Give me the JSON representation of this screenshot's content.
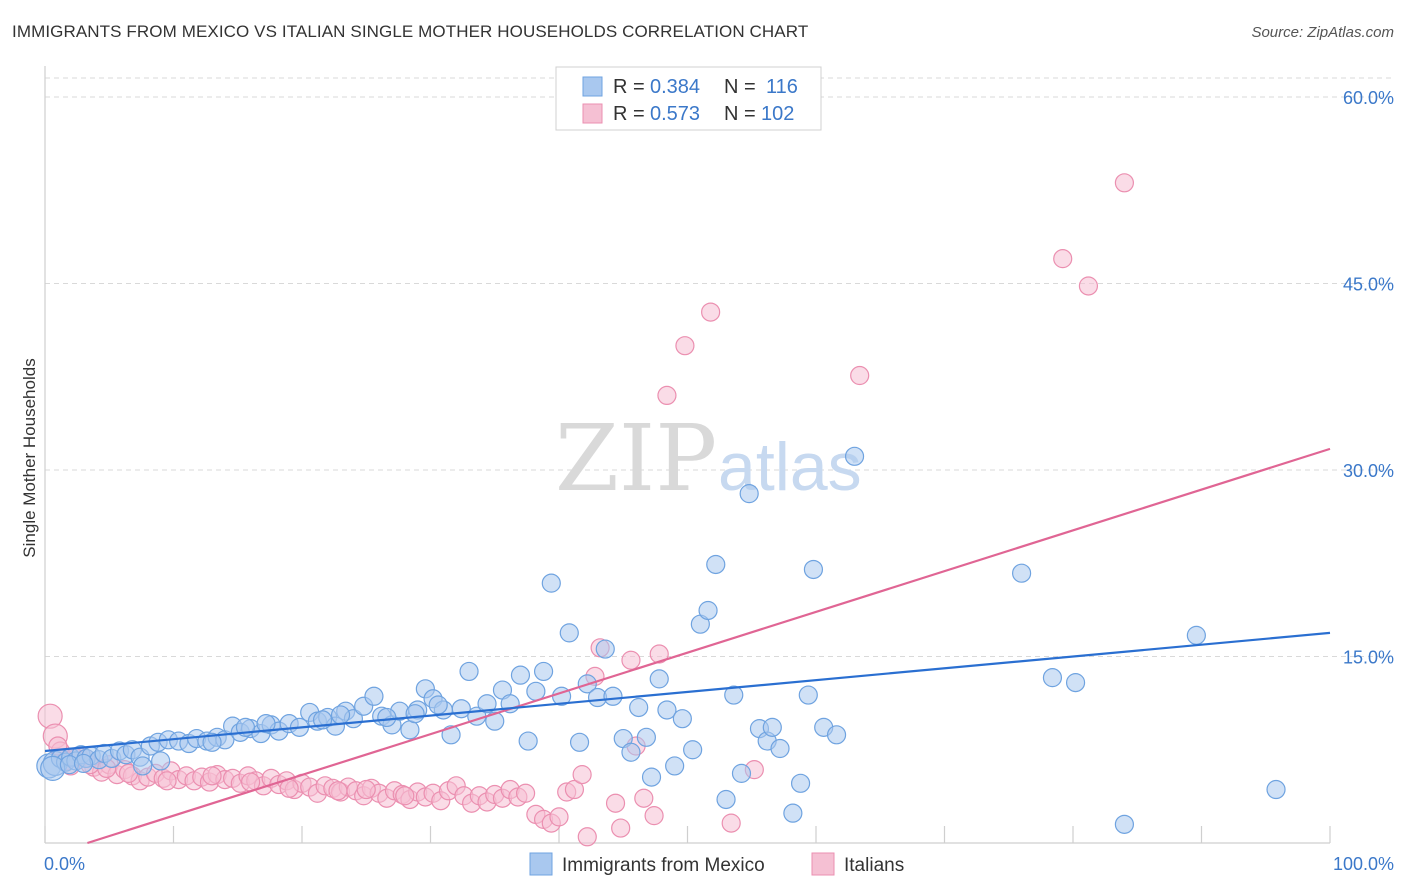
{
  "title": "IMMIGRANTS FROM MEXICO VS ITALIAN SINGLE MOTHER HOUSEHOLDS CORRELATION CHART",
  "source": "Source: ZipAtlas.com",
  "watermark": {
    "zip": "ZIP",
    "atlas": "atlas"
  },
  "colors": {
    "blue": "#6fa3e0",
    "blue_fill": "#a9c8ef",
    "blue_line": "#2a6fd1",
    "pink": "#eb8fb0",
    "pink_fill": "#f5c0d3",
    "pink_line": "#e06594",
    "axis_label": "#3b78c9",
    "grid": "#d9d9d9"
  },
  "legend": {
    "rows": [
      {
        "r_label": "R =",
        "r_value": "0.384",
        "n_label": "N =",
        "n_value": "116"
      },
      {
        "r_label": "R =",
        "r_value": "0.573",
        "n_label": "N =",
        "n_value": "102"
      }
    ]
  },
  "chart_data": {
    "type": "scatter",
    "title": "IMMIGRANTS FROM MEXICO VS ITALIAN SINGLE MOTHER HOUSEHOLDS CORRELATION CHART",
    "xlabel": "",
    "ylabel": "Single Mother Households",
    "xlim": [
      0,
      100
    ],
    "ylim": [
      0,
      60
    ],
    "x_tick_labels": [
      "0.0%",
      "100.0%"
    ],
    "y_tick_labels": [
      "15.0%",
      "30.0%",
      "45.0%",
      "60.0%"
    ],
    "y_ticks": [
      15,
      30,
      45,
      60
    ],
    "grid": true,
    "legend_position": "top-center",
    "series": [
      {
        "name": "Immigrants from Mexico",
        "R": 0.384,
        "N": 116,
        "trend": {
          "x": [
            0,
            100
          ],
          "y": [
            7.4,
            16.9
          ]
        },
        "points": [
          [
            0.3,
            6.2
          ],
          [
            0.8,
            6.4
          ],
          [
            1.2,
            6.8
          ],
          [
            1.6,
            6.5
          ],
          [
            2,
            6.9
          ],
          [
            2.4,
            6.6
          ],
          [
            2.8,
            7.1
          ],
          [
            3.2,
            6.8
          ],
          [
            3.6,
            7.0
          ],
          [
            4.2,
            6.7
          ],
          [
            4.6,
            7.2
          ],
          [
            5.2,
            6.8
          ],
          [
            5.8,
            7.4
          ],
          [
            6.3,
            7.1
          ],
          [
            6.8,
            7.5
          ],
          [
            7.4,
            6.9
          ],
          [
            8.2,
            7.8
          ],
          [
            8.8,
            8.1
          ],
          [
            9.6,
            8.3
          ],
          [
            10.4,
            8.2
          ],
          [
            11.2,
            8.0
          ],
          [
            11.8,
            8.4
          ],
          [
            12.6,
            8.2
          ],
          [
            13.4,
            8.5
          ],
          [
            14,
            8.3
          ],
          [
            14.6,
            9.4
          ],
          [
            15.2,
            8.9
          ],
          [
            16,
            9.2
          ],
          [
            16.8,
            8.8
          ],
          [
            17.6,
            9.5
          ],
          [
            18.2,
            9.0
          ],
          [
            19,
            9.6
          ],
          [
            19.8,
            9.3
          ],
          [
            20.6,
            10.5
          ],
          [
            21.2,
            9.8
          ],
          [
            22,
            10.1
          ],
          [
            22.6,
            9.4
          ],
          [
            23.4,
            10.6
          ],
          [
            24,
            10.0
          ],
          [
            24.8,
            11.0
          ],
          [
            25.6,
            11.8
          ],
          [
            26.2,
            10.2
          ],
          [
            27,
            9.5
          ],
          [
            27.6,
            10.6
          ],
          [
            28.4,
            9.1
          ],
          [
            29,
            10.7
          ],
          [
            29.6,
            12.4
          ],
          [
            30.2,
            11.6
          ],
          [
            31,
            10.7
          ],
          [
            31.6,
            8.7
          ],
          [
            32.4,
            10.8
          ],
          [
            33,
            13.8
          ],
          [
            33.6,
            10.2
          ],
          [
            34.4,
            11.2
          ],
          [
            35,
            9.8
          ],
          [
            35.6,
            12.3
          ],
          [
            36.2,
            11.2
          ],
          [
            37,
            13.5
          ],
          [
            37.6,
            8.2
          ],
          [
            38.2,
            12.2
          ],
          [
            38.8,
            13.8
          ],
          [
            39.4,
            20.9
          ],
          [
            40.2,
            11.8
          ],
          [
            40.8,
            16.9
          ],
          [
            41.6,
            8.1
          ],
          [
            42.2,
            12.8
          ],
          [
            43,
            11.7
          ],
          [
            43.6,
            15.6
          ],
          [
            44.2,
            11.8
          ],
          [
            45,
            8.4
          ],
          [
            45.6,
            7.3
          ],
          [
            46.2,
            10.9
          ],
          [
            46.8,
            8.5
          ],
          [
            47.2,
            5.3
          ],
          [
            47.8,
            13.2
          ],
          [
            48.4,
            10.7
          ],
          [
            49,
            6.2
          ],
          [
            49.6,
            10.0
          ],
          [
            50.4,
            7.5
          ],
          [
            51,
            17.6
          ],
          [
            51.6,
            18.7
          ],
          [
            52.2,
            22.4
          ],
          [
            53,
            3.5
          ],
          [
            53.6,
            11.9
          ],
          [
            54.2,
            5.6
          ],
          [
            54.8,
            28.1
          ],
          [
            55.6,
            9.2
          ],
          [
            56.2,
            8.2
          ],
          [
            56.6,
            9.3
          ],
          [
            57.2,
            7.6
          ],
          [
            58.2,
            2.4
          ],
          [
            58.8,
            4.8
          ],
          [
            59.4,
            11.9
          ],
          [
            59.8,
            22.0
          ],
          [
            60.6,
            9.3
          ],
          [
            61.6,
            8.7
          ],
          [
            63,
            31.1
          ],
          [
            76,
            21.7
          ],
          [
            78.4,
            13.3
          ],
          [
            80.2,
            12.9
          ],
          [
            84,
            1.5
          ],
          [
            89.6,
            16.7
          ],
          [
            95.8,
            4.3
          ],
          [
            0.6,
            6.0
          ],
          [
            1.9,
            6.3
          ],
          [
            3.0,
            6.4
          ],
          [
            7.6,
            6.2
          ],
          [
            9.0,
            6.6
          ],
          [
            13.0,
            8.1
          ],
          [
            15.6,
            9.3
          ],
          [
            17.2,
            9.6
          ],
          [
            21.6,
            9.9
          ],
          [
            23.0,
            10.3
          ],
          [
            26.6,
            10.1
          ],
          [
            28.8,
            10.4
          ],
          [
            30.6,
            11.1
          ]
        ]
      },
      {
        "name": "Italians",
        "R": 0.573,
        "N": 102,
        "trend": {
          "x": [
            3.3,
            100
          ],
          "y": [
            0,
            31.7
          ]
        },
        "points": [
          [
            0.4,
            10.2
          ],
          [
            0.8,
            8.6
          ],
          [
            1.2,
            7.4
          ],
          [
            1.6,
            6.6
          ],
          [
            2,
            6.2
          ],
          [
            2.6,
            7.0
          ],
          [
            3.2,
            6.8
          ],
          [
            3.8,
            6.1
          ],
          [
            4.4,
            5.7
          ],
          [
            5,
            6.3
          ],
          [
            5.6,
            5.5
          ],
          [
            6.2,
            5.9
          ],
          [
            6.8,
            5.4
          ],
          [
            7.4,
            5.0
          ],
          [
            8,
            5.3
          ],
          [
            8.6,
            5.6
          ],
          [
            9.2,
            5.2
          ],
          [
            9.8,
            5.8
          ],
          [
            10.4,
            5.1
          ],
          [
            11,
            5.4
          ],
          [
            11.6,
            5.0
          ],
          [
            12.2,
            5.3
          ],
          [
            12.8,
            4.9
          ],
          [
            13.4,
            5.5
          ],
          [
            14,
            5.1
          ],
          [
            14.6,
            5.2
          ],
          [
            15.2,
            4.8
          ],
          [
            15.8,
            5.4
          ],
          [
            16.4,
            5.0
          ],
          [
            17,
            4.6
          ],
          [
            17.6,
            5.2
          ],
          [
            18.2,
            4.7
          ],
          [
            18.8,
            5.0
          ],
          [
            19.4,
            4.3
          ],
          [
            20,
            4.8
          ],
          [
            20.6,
            4.5
          ],
          [
            21.2,
            4.0
          ],
          [
            21.8,
            4.6
          ],
          [
            22.4,
            4.4
          ],
          [
            23,
            4.1
          ],
          [
            23.6,
            4.5
          ],
          [
            24.2,
            4.2
          ],
          [
            24.8,
            3.8
          ],
          [
            25.4,
            4.4
          ],
          [
            26,
            4.0
          ],
          [
            26.6,
            3.6
          ],
          [
            27.2,
            4.2
          ],
          [
            27.8,
            3.9
          ],
          [
            28.4,
            3.5
          ],
          [
            29,
            4.1
          ],
          [
            29.6,
            3.7
          ],
          [
            30.2,
            4.0
          ],
          [
            30.8,
            3.4
          ],
          [
            31.4,
            4.2
          ],
          [
            32,
            4.6
          ],
          [
            32.6,
            3.8
          ],
          [
            33.2,
            3.2
          ],
          [
            33.8,
            3.8
          ],
          [
            34.4,
            3.3
          ],
          [
            35,
            3.9
          ],
          [
            35.6,
            3.6
          ],
          [
            36.2,
            4.3
          ],
          [
            36.8,
            3.7
          ],
          [
            37.4,
            4.0
          ],
          [
            38.2,
            2.3
          ],
          [
            38.8,
            1.9
          ],
          [
            39.4,
            1.6
          ],
          [
            40,
            2.1
          ],
          [
            40.6,
            4.1
          ],
          [
            41.2,
            4.3
          ],
          [
            41.8,
            5.5
          ],
          [
            42.2,
            0.5
          ],
          [
            42.8,
            13.4
          ],
          [
            43.2,
            15.7
          ],
          [
            44.4,
            3.2
          ],
          [
            44.8,
            1.2
          ],
          [
            45.6,
            14.7
          ],
          [
            46,
            7.8
          ],
          [
            46.6,
            3.6
          ],
          [
            47.4,
            2.2
          ],
          [
            47.8,
            15.2
          ],
          [
            48.4,
            36.0
          ],
          [
            49.8,
            40.0
          ],
          [
            51.8,
            42.7
          ],
          [
            53.4,
            1.6
          ],
          [
            55.2,
            5.9
          ],
          [
            63.4,
            37.6
          ],
          [
            79.2,
            47.0
          ],
          [
            81.2,
            44.8
          ],
          [
            84,
            53.1
          ],
          [
            1.0,
            7.8
          ],
          [
            2.3,
            6.9
          ],
          [
            3.5,
            6.3
          ],
          [
            4.8,
            6.0
          ],
          [
            6.5,
            5.6
          ],
          [
            9.5,
            5.0
          ],
          [
            13.0,
            5.4
          ],
          [
            16.0,
            4.9
          ],
          [
            19.0,
            4.4
          ],
          [
            22.8,
            4.2
          ],
          [
            25.0,
            4.3
          ],
          [
            28.0,
            3.8
          ]
        ]
      }
    ]
  },
  "bottom_legend": {
    "items": [
      "Immigrants from Mexico",
      "Italians"
    ]
  }
}
